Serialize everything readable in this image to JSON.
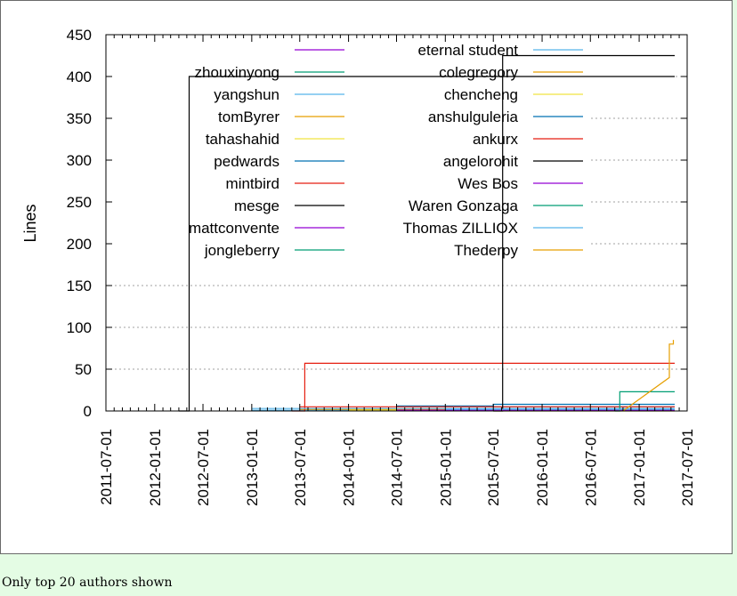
{
  "chart_data": {
    "type": "line",
    "title": "",
    "xlabel": "",
    "ylabel": "Lines",
    "ylim": [
      0,
      450
    ],
    "xlim": [
      "2011-07-01",
      "2017-07-01"
    ],
    "y_ticks": [
      "0",
      "50",
      "100",
      "150",
      "200",
      "250",
      "300",
      "350",
      "400",
      "450"
    ],
    "x_ticks": [
      "2011-07-01",
      "2012-01-01",
      "2012-07-01",
      "2013-01-01",
      "2013-07-01",
      "2014-01-01",
      "2014-07-01",
      "2015-01-01",
      "2015-07-01",
      "2016-01-01",
      "2016-07-01",
      "2017-01-01",
      "2017-07-01"
    ],
    "grid": true,
    "legend_position": "top",
    "series": [
      {
        "name": "",
        "color": "#9400d3",
        "points": []
      },
      {
        "name": "zhouxinyong",
        "color": "#009e73",
        "points": [
          [
            "2013-06-01",
            1
          ],
          [
            "2017-05-15",
            1
          ]
        ]
      },
      {
        "name": "yangshun",
        "color": "#56b4e9",
        "points": [
          [
            "2013-01-01",
            1
          ],
          [
            "2017-05-15",
            1
          ]
        ]
      },
      {
        "name": "tomByrer",
        "color": "#e69f00",
        "points": [
          [
            "2013-07-01",
            2
          ],
          [
            "2017-05-15",
            2
          ]
        ]
      },
      {
        "name": "tahashahid",
        "color": "#f0e442",
        "points": [
          [
            "2014-01-01",
            1
          ],
          [
            "2017-05-15",
            1
          ]
        ]
      },
      {
        "name": "pedwards",
        "color": "#0072b2",
        "points": [
          [
            "2015-07-01",
            5
          ],
          [
            "2017-05-15",
            5
          ]
        ]
      },
      {
        "name": "mintbird",
        "color": "#e51e10",
        "points": [
          [
            "2013-06-01",
            0
          ],
          [
            "2013-07-20",
            0
          ],
          [
            "2013-07-20",
            57
          ],
          [
            "2017-05-15",
            57
          ]
        ]
      },
      {
        "name": "mesge",
        "color": "#000000",
        "points": [
          [
            "2012-04-01",
            0
          ],
          [
            "2012-05-10",
            0
          ],
          [
            "2012-05-10",
            400
          ],
          [
            "2017-05-15",
            400
          ]
        ]
      },
      {
        "name": "mattconvente",
        "color": "#9400d3",
        "points": [
          [
            "2014-07-01",
            1
          ],
          [
            "2017-05-15",
            1
          ]
        ]
      },
      {
        "name": "jongleberry",
        "color": "#009e73",
        "points": [
          [
            "2015-07-01",
            2
          ],
          [
            "2017-05-15",
            2
          ]
        ]
      },
      {
        "name": "eternal student",
        "color": "#56b4e9",
        "points": [
          [
            "2013-01-01",
            3
          ],
          [
            "2017-05-15",
            3
          ]
        ]
      },
      {
        "name": "colegregory",
        "color": "#e69f00",
        "points": [
          [
            "2015-07-01",
            1
          ],
          [
            "2017-05-15",
            1
          ]
        ]
      },
      {
        "name": "chencheng",
        "color": "#f0e442",
        "points": [
          [
            "2015-07-01",
            0
          ],
          [
            "2017-05-15",
            0
          ]
        ]
      },
      {
        "name": "anshulguleria",
        "color": "#0072b2",
        "points": [
          [
            "2014-07-01",
            6
          ],
          [
            "2015-07-01",
            6
          ],
          [
            "2015-07-01",
            8
          ],
          [
            "2017-05-15",
            8
          ]
        ]
      },
      {
        "name": "ankurx",
        "color": "#e51e10",
        "points": [
          [
            "2013-07-01",
            5
          ],
          [
            "2017-05-15",
            5
          ]
        ]
      },
      {
        "name": "angelorohit",
        "color": "#000000",
        "points": [
          [
            "2015-07-01",
            0
          ],
          [
            "2015-08-05",
            0
          ],
          [
            "2015-08-05",
            425
          ],
          [
            "2017-05-15",
            425
          ]
        ]
      },
      {
        "name": "Wes Bos",
        "color": "#9400d3",
        "points": [
          [
            "2015-01-01",
            1
          ],
          [
            "2017-05-15",
            1
          ]
        ]
      },
      {
        "name": "Waren Gonzaga",
        "color": "#009e73",
        "points": [
          [
            "2016-10-01",
            0
          ],
          [
            "2016-10-20",
            0
          ],
          [
            "2016-10-20",
            23
          ],
          [
            "2017-05-15",
            23
          ]
        ]
      },
      {
        "name": "Thomas ZILLIOX",
        "color": "#56b4e9",
        "points": [
          [
            "2015-01-01",
            2
          ],
          [
            "2017-05-15",
            2
          ]
        ]
      },
      {
        "name": "Thederpy",
        "color": "#e69f00",
        "points": [
          [
            "2016-11-01",
            0
          ],
          [
            "2017-04-25",
            40
          ],
          [
            "2017-04-25",
            80
          ],
          [
            "2017-05-10",
            80
          ],
          [
            "2017-05-10",
            85
          ]
        ]
      }
    ]
  },
  "footer": {
    "note": "Only top 20 authors shown"
  }
}
